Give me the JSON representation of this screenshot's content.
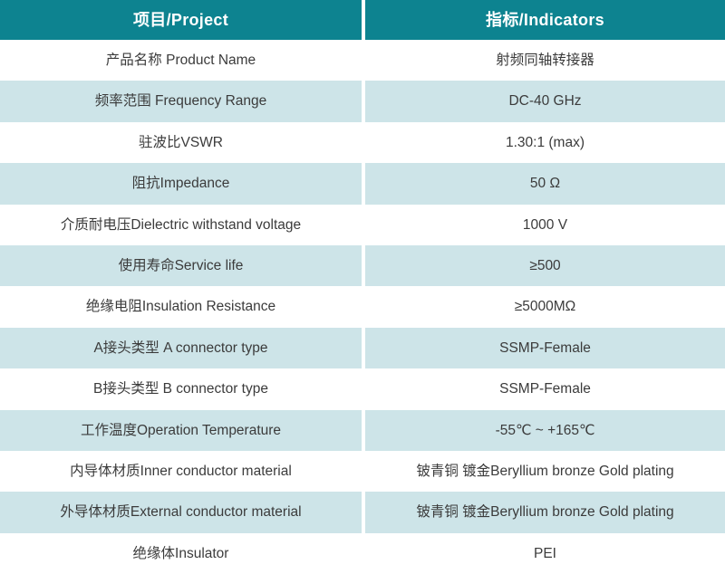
{
  "table": {
    "header": {
      "col1": "项目/Project",
      "col2": "指标/Indicators"
    },
    "rows": [
      {
        "label": "产品名称 Product Name",
        "value": "射频同轴转接器"
      },
      {
        "label": "频率范围 Frequency Range",
        "value": "DC-40 GHz"
      },
      {
        "label": "驻波比VSWR",
        "value": "1.30:1 (max)"
      },
      {
        "label": "阻抗Impedance",
        "value": "50 Ω"
      },
      {
        "label": "介质耐电压Dielectric withstand voltage",
        "value": "1000 V"
      },
      {
        "label": "使用寿命Service life",
        "value": "≥500"
      },
      {
        "label": "绝缘电阻Insulation Resistance",
        "value": "≥5000MΩ"
      },
      {
        "label": "A接头类型 A connector type",
        "value": "SSMP-Female"
      },
      {
        "label": "B接头类型 B connector type",
        "value": "SSMP-Female"
      },
      {
        "label": "工作温度Operation Temperature",
        "value": "-55℃ ~ +165℃"
      },
      {
        "label": "内导体材质Inner conductor material",
        "value": "铍青铜 镀金Beryllium bronze Gold plating"
      },
      {
        "label": "外导体材质External conductor material",
        "value": "铍青铜 镀金Beryllium bronze Gold plating"
      },
      {
        "label": "绝缘体Insulator",
        "value": "PEI"
      }
    ],
    "colors": {
      "header_bg": "#0d8390",
      "header_text": "#ffffff",
      "row_alt_bg": "#cde4e8",
      "body_text": "#3b3b3b"
    }
  }
}
